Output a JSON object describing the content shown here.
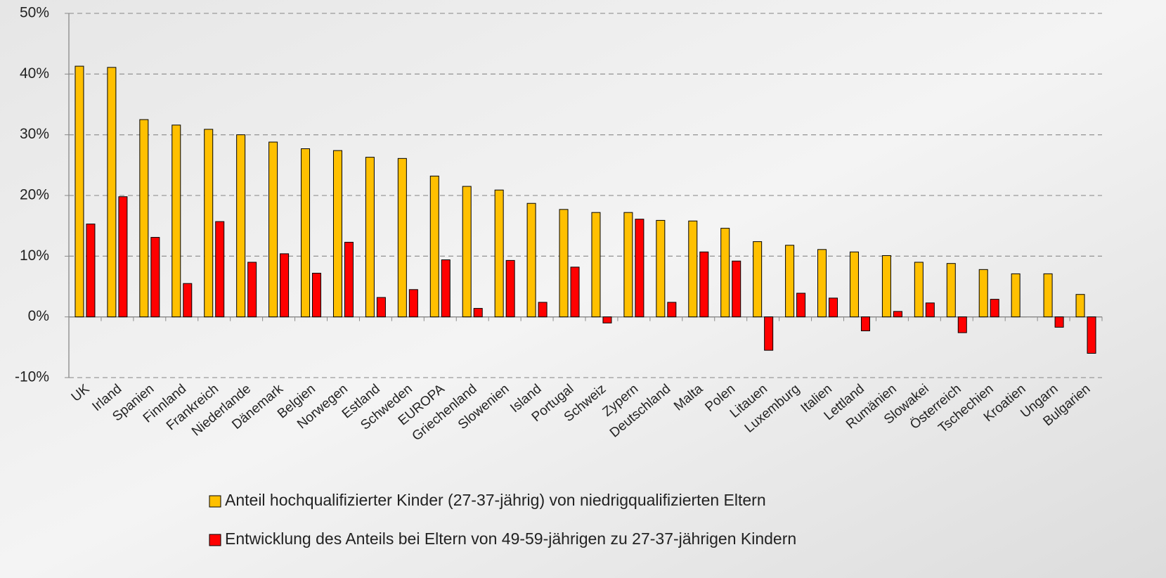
{
  "chart_data": {
    "type": "bar",
    "categories": [
      "UK",
      "Irland",
      "Spanien",
      "Finnland",
      "Frankreich",
      "Niederlande",
      "Dänemark",
      "Belgien",
      "Norwegen",
      "Estland",
      "Schweden",
      "EUROPA",
      "Griechenland",
      "Slowenien",
      "Island",
      "Portugal",
      "Schweiz",
      "Zypern",
      "Deutschland",
      "Malta",
      "Polen",
      "Litauen",
      "Luxemburg",
      "Italien",
      "Lettland",
      "Rumänien",
      "Slowakei",
      "Österreich",
      "Tschechien",
      "Kroatien",
      "Ungarn",
      "Bulgarien"
    ],
    "series": [
      {
        "name": "Anteil hochqualifizierter Kinder (27-37-jährig) von niedrigqualifizierten Eltern",
        "color": "#ffc000",
        "values": [
          41.3,
          41.1,
          32.5,
          31.6,
          30.9,
          30.0,
          28.8,
          27.7,
          27.4,
          26.3,
          26.1,
          23.2,
          21.5,
          20.9,
          18.7,
          17.7,
          17.2,
          17.2,
          15.9,
          15.8,
          14.6,
          12.4,
          11.8,
          11.1,
          10.7,
          10.1,
          9.0,
          8.8,
          7.8,
          7.1,
          7.1,
          3.7
        ]
      },
      {
        "name": "Entwicklung des Anteils bei Eltern von 49-59-jährigen zu 27-37-jährigen Kindern",
        "color": "#ff0000",
        "values": [
          15.3,
          19.8,
          13.1,
          5.5,
          15.7,
          9.0,
          10.4,
          7.2,
          12.3,
          3.2,
          4.5,
          9.4,
          1.4,
          9.3,
          2.4,
          8.2,
          -1.0,
          16.1,
          2.4,
          10.7,
          9.2,
          -5.5,
          3.9,
          3.1,
          -2.3,
          0.9,
          2.3,
          -2.6,
          2.9,
          0,
          -1.7,
          -6.0
        ]
      }
    ],
    "ylim": [
      -10,
      50
    ],
    "yticks": [
      {
        "value": -10,
        "label": "-10%"
      },
      {
        "value": 0,
        "label": "0%"
      },
      {
        "value": 10,
        "label": "10%"
      },
      {
        "value": 20,
        "label": "20%"
      },
      {
        "value": 30,
        "label": "30%"
      },
      {
        "value": 40,
        "label": "40%"
      },
      {
        "value": 50,
        "label": "50%"
      }
    ],
    "grid": true,
    "legend": "bottom"
  }
}
